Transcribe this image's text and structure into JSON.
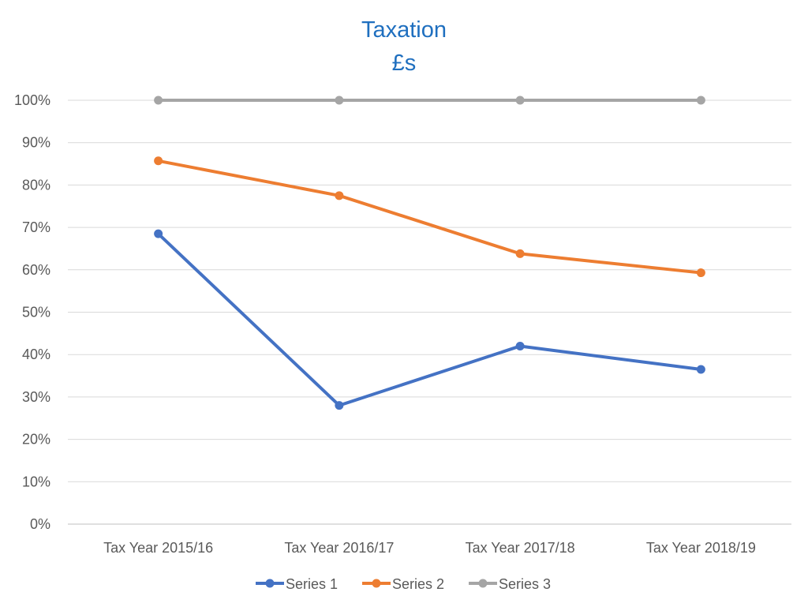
{
  "chart_data": {
    "type": "line",
    "title": "Taxation",
    "subtitle": "£s",
    "categories": [
      "Tax Year 2015/16",
      "Tax Year 2016/17",
      "Tax Year 2017/18",
      "Tax Year 2018/19"
    ],
    "y_ticks": [
      "0%",
      "10%",
      "20%",
      "30%",
      "40%",
      "50%",
      "60%",
      "70%",
      "80%",
      "90%",
      "100%"
    ],
    "ylim": [
      0,
      100
    ],
    "y_unit": "%",
    "grid": true,
    "legend_position": "bottom",
    "series": [
      {
        "name": "Series 1",
        "color": "#4472c4",
        "values": [
          68.5,
          28,
          42,
          36.5
        ]
      },
      {
        "name": "Series 2",
        "color": "#ed7d31",
        "values": [
          85.7,
          77.5,
          63.8,
          59.3
        ]
      },
      {
        "name": "Series 3",
        "color": "#a5a5a5",
        "values": [
          100,
          100,
          100,
          100
        ]
      }
    ]
  }
}
